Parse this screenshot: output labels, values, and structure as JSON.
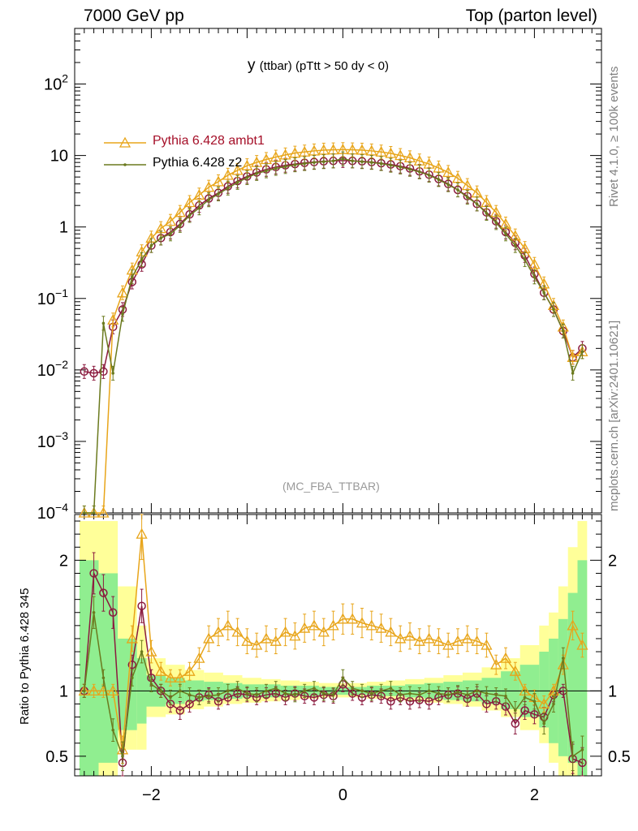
{
  "header": {
    "left": "7000 GeV pp",
    "right": "Top (parton level)"
  },
  "title": {
    "main": "y",
    "sub": "(ttbar) (pTtt > 50 dy < 0)"
  },
  "watermark": "(MC_FBA_TTBAR)",
  "side_labels": {
    "rivet": "Rivet 4.1.0, ≥ 100k events",
    "mcplots": "mcplots.cern.ch [arXiv:2401.10621]"
  },
  "ratio_ylabel": "Ratio to Pythia 6.428 345",
  "legend": [
    {
      "label": "Pythia 6.428 ambt1",
      "color": "#e8a51a"
    },
    {
      "label": "Pythia 6.428 z2",
      "color": "#6b7a1e"
    }
  ],
  "colors": {
    "reference": "#8b1a3e",
    "ambt1": "#e8a51a",
    "z2": "#6b7a1e",
    "band_yellow": "#ffff99",
    "band_green": "#90ee90"
  },
  "chart_data": [
    {
      "type": "line",
      "panel": "main",
      "yscale": "log",
      "xlim": [
        -2.8,
        2.7
      ],
      "ylim": [
        0.0001,
        600
      ],
      "y_ticks": [
        "10^-4",
        "10^-3",
        "10^-2",
        "10^-1",
        "1",
        "10",
        "10^2"
      ],
      "x": [
        -2.7,
        -2.6,
        -2.5,
        -2.4,
        -2.3,
        -2.2,
        -2.1,
        -2.0,
        -1.9,
        -1.8,
        -1.7,
        -1.6,
        -1.5,
        -1.4,
        -1.3,
        -1.2,
        -1.1,
        -1.0,
        -0.9,
        -0.8,
        -0.7,
        -0.6,
        -0.5,
        -0.4,
        -0.3,
        -0.2,
        -0.1,
        0.0,
        0.1,
        0.2,
        0.3,
        0.4,
        0.5,
        0.6,
        0.7,
        0.8,
        0.9,
        1.0,
        1.1,
        1.2,
        1.3,
        1.4,
        1.5,
        1.6,
        1.7,
        1.8,
        1.9,
        2.0,
        2.1,
        2.2,
        2.3,
        2.4,
        2.5
      ],
      "series": [
        {
          "name": "",
          "values": [
            0.0095,
            0.009,
            0.0095,
            0.04,
            0.07,
            0.17,
            0.3,
            0.55,
            0.7,
            0.85,
            1.1,
            1.5,
            2.0,
            2.5,
            3.0,
            3.7,
            4.4,
            5.1,
            5.8,
            6.4,
            6.9,
            7.3,
            7.6,
            7.9,
            8.1,
            8.3,
            8.4,
            8.5,
            8.4,
            8.3,
            8.1,
            7.8,
            7.5,
            7.1,
            6.6,
            6.0,
            5.4,
            4.7,
            4.0,
            3.3,
            2.7,
            2.1,
            1.6,
            1.2,
            0.85,
            0.6,
            0.4,
            0.22,
            0.12,
            0.07,
            0.035,
            0.015,
            0.02
          ]
        },
        {
          "name": "Pythia 6.428 ambt1",
          "values": [
            0.0001,
            0.0001,
            0.0001,
            0.05,
            0.12,
            0.25,
            0.45,
            0.7,
            0.95,
            1.2,
            1.6,
            2.2,
            2.8,
            3.6,
            4.3,
            5.3,
            6.2,
            7.2,
            8.0,
            8.8,
            9.5,
            10.2,
            10.8,
            11.2,
            11.6,
            11.9,
            12.0,
            12.1,
            12.0,
            11.9,
            11.6,
            11.2,
            10.7,
            10.0,
            9.3,
            8.4,
            7.6,
            6.7,
            5.8,
            4.8,
            3.8,
            3.0,
            2.2,
            1.6,
            1.1,
            0.75,
            0.5,
            0.3,
            0.16,
            0.08,
            0.04,
            0.015,
            0.018
          ]
        },
        {
          "name": "Pythia 6.428 z2",
          "values": [
            0.0001,
            0.0001,
            0.045,
            0.009,
            0.06,
            0.2,
            0.35,
            0.55,
            0.7,
            0.8,
            1.05,
            1.45,
            1.85,
            2.4,
            2.9,
            3.5,
            4.2,
            4.9,
            5.6,
            6.1,
            6.6,
            7.0,
            7.4,
            7.7,
            8.0,
            8.2,
            8.4,
            9.0,
            8.4,
            8.2,
            8.0,
            7.7,
            7.3,
            6.9,
            6.4,
            5.9,
            5.3,
            4.6,
            3.9,
            3.3,
            2.6,
            2.1,
            1.55,
            1.15,
            0.8,
            0.55,
            0.35,
            0.2,
            0.12,
            0.07,
            0.035,
            0.009,
            0.018
          ]
        }
      ]
    },
    {
      "type": "line",
      "panel": "ratio",
      "xlim": [
        -2.8,
        2.7
      ],
      "ylim": [
        0.35,
        2.35
      ],
      "x_ticks": [
        "-2",
        "0",
        "2"
      ],
      "y_ticks": [
        "0.5",
        "1",
        "2"
      ],
      "bands": {
        "x_edges": [
          -2.75,
          -2.55,
          -2.35,
          -2.15,
          -2.05,
          -1.85,
          -1.65,
          -1.45,
          -1.25,
          -1.05,
          -0.85,
          -0.65,
          -0.45,
          -0.25,
          0.25,
          0.45,
          0.65,
          0.85,
          1.05,
          1.25,
          1.45,
          1.65,
          1.85,
          2.05,
          2.15,
          2.25,
          2.35,
          2.45,
          2.55
        ],
        "yellow_lo": [
          0.3,
          0.3,
          0.55,
          0.55,
          0.8,
          0.82,
          0.86,
          0.88,
          0.9,
          0.91,
          0.92,
          0.93,
          0.94,
          0.95,
          0.94,
          0.93,
          0.92,
          0.91,
          0.9,
          0.88,
          0.85,
          0.8,
          0.7,
          0.6,
          0.45,
          0.35,
          0.3,
          0.3
        ],
        "yellow_hi": [
          2.3,
          2.3,
          1.8,
          1.5,
          1.25,
          1.2,
          1.16,
          1.14,
          1.12,
          1.1,
          1.09,
          1.08,
          1.07,
          1.06,
          1.07,
          1.08,
          1.09,
          1.1,
          1.12,
          1.14,
          1.18,
          1.25,
          1.35,
          1.5,
          1.6,
          1.8,
          2.1,
          2.3
        ],
        "green_lo": [
          0.3,
          0.45,
          0.7,
          0.75,
          0.88,
          0.9,
          0.92,
          0.93,
          0.94,
          0.95,
          0.95,
          0.96,
          0.96,
          0.97,
          0.96,
          0.96,
          0.95,
          0.94,
          0.93,
          0.92,
          0.9,
          0.86,
          0.8,
          0.72,
          0.6,
          0.5,
          0.45,
          0.3
        ],
        "green_hi": [
          2.0,
          1.9,
          1.4,
          1.25,
          1.12,
          1.1,
          1.08,
          1.07,
          1.06,
          1.05,
          1.05,
          1.04,
          1.04,
          1.03,
          1.04,
          1.04,
          1.05,
          1.06,
          1.07,
          1.08,
          1.1,
          1.15,
          1.2,
          1.3,
          1.4,
          1.55,
          1.75,
          2.0
        ]
      },
      "x": [
        -2.7,
        -2.6,
        -2.5,
        -2.4,
        -2.3,
        -2.2,
        -2.1,
        -2.0,
        -1.9,
        -1.8,
        -1.7,
        -1.6,
        -1.5,
        -1.4,
        -1.3,
        -1.2,
        -1.1,
        -1.0,
        -0.9,
        -0.8,
        -0.7,
        -0.6,
        -0.5,
        -0.4,
        -0.3,
        -0.2,
        -0.1,
        0.0,
        0.1,
        0.2,
        0.3,
        0.4,
        0.5,
        0.6,
        0.7,
        0.8,
        0.9,
        1.0,
        1.1,
        1.2,
        1.3,
        1.4,
        1.5,
        1.6,
        1.7,
        1.8,
        1.9,
        2.0,
        2.1,
        2.2,
        2.3,
        2.4,
        2.5
      ],
      "series": [
        {
          "name": "",
          "values": [
            1.0,
            1.9,
            1.75,
            1.6,
            0.45,
            1.2,
            1.65,
            1.1,
            1.0,
            0.9,
            0.85,
            0.9,
            0.95,
            0.97,
            0.92,
            0.95,
            0.98,
            0.97,
            0.95,
            0.97,
            0.98,
            0.95,
            0.98,
            0.96,
            0.95,
            0.97,
            0.96,
            1.05,
            0.98,
            0.95,
            0.97,
            0.96,
            0.92,
            0.95,
            0.92,
            0.93,
            0.92,
            0.95,
            0.97,
            0.98,
            0.94,
            0.98,
            0.9,
            0.92,
            0.88,
            0.75,
            0.85,
            0.82,
            0.8,
            0.97,
            1.0,
            0.48,
            0.45
          ]
        },
        {
          "name": "Pythia 6.428 ambt1",
          "values": [
            1.0,
            1.0,
            1.0,
            1.0,
            0.55,
            1.4,
            2.2,
            1.3,
            1.15,
            1.1,
            1.1,
            1.15,
            1.25,
            1.4,
            1.45,
            1.5,
            1.45,
            1.38,
            1.35,
            1.4,
            1.38,
            1.45,
            1.42,
            1.48,
            1.5,
            1.45,
            1.5,
            1.55,
            1.55,
            1.52,
            1.5,
            1.48,
            1.45,
            1.4,
            1.42,
            1.38,
            1.4,
            1.38,
            1.35,
            1.38,
            1.4,
            1.38,
            1.35,
            1.2,
            1.25,
            1.15,
            1.0,
            0.95,
            0.9,
            1.0,
            1.2,
            1.5,
            1.35
          ]
        },
        {
          "name": "Pythia 6.428 z2",
          "values": [
            1.0,
            1.6,
            1.1,
            0.7,
            0.5,
            1.1,
            1.3,
            1.05,
            1.0,
            0.95,
            1.0,
            0.97,
            0.95,
            0.96,
            0.97,
            1.0,
            1.02,
            0.98,
            0.97,
            1.0,
            1.02,
            0.98,
            0.97,
            1.0,
            1.02,
            0.98,
            0.97,
            1.1,
            1.02,
            1.0,
            0.98,
            1.0,
            1.02,
            0.97,
            0.98,
            0.97,
            1.0,
            0.98,
            0.97,
            0.99,
            0.97,
            1.0,
            0.98,
            0.97,
            0.96,
            0.85,
            0.95,
            0.92,
            0.75,
            0.9,
            1.25,
            0.5,
            0.55
          ]
        }
      ]
    }
  ]
}
